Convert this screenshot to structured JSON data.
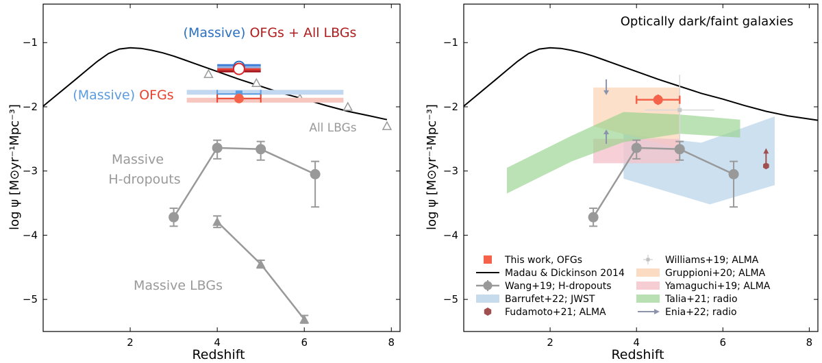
{
  "chart_data": [
    {
      "type": "scatter",
      "panel": "left",
      "xlabel": "Redshift",
      "ylabel": "log ψ [M⊙yr⁻¹Mpc⁻³]",
      "xlim": [
        0,
        8.2
      ],
      "ylim": [
        -5.5,
        -0.4
      ],
      "xticks": [
        2,
        4,
        6,
        8
      ],
      "xtick_labels": [
        "2",
        "4",
        "6",
        "8"
      ],
      "yticks": [
        -1,
        -2,
        -3,
        -4,
        -5
      ],
      "ytick_labels": [
        "−1",
        "−2",
        "−3",
        "−4",
        "−5"
      ],
      "madau_dickinson": [
        [
          0,
          -1.99
        ],
        [
          0.25,
          -1.85
        ],
        [
          0.5,
          -1.71
        ],
        [
          0.75,
          -1.57
        ],
        [
          1,
          -1.43
        ],
        [
          1.25,
          -1.29
        ],
        [
          1.5,
          -1.17
        ],
        [
          1.75,
          -1.1
        ],
        [
          2,
          -1.08
        ],
        [
          2.25,
          -1.09
        ],
        [
          2.5,
          -1.12
        ],
        [
          2.75,
          -1.16
        ],
        [
          3,
          -1.21
        ],
        [
          3.25,
          -1.27
        ],
        [
          3.5,
          -1.33
        ],
        [
          3.75,
          -1.39
        ],
        [
          4,
          -1.45
        ],
        [
          4.5,
          -1.57
        ],
        [
          5,
          -1.68
        ],
        [
          5.5,
          -1.79
        ],
        [
          6,
          -1.88
        ],
        [
          6.5,
          -1.98
        ],
        [
          7,
          -2.07
        ],
        [
          7.5,
          -2.14
        ],
        [
          7.9,
          -2.2
        ]
      ],
      "hdropouts": {
        "x": [
          3.0,
          4.0,
          5.0,
          6.25
        ],
        "y": [
          -3.72,
          -2.64,
          -2.66,
          -3.05
        ],
        "err_low": [
          0.14,
          0.17,
          0.17,
          0.51
        ],
        "err_high": [
          0.14,
          0.12,
          0.12,
          0.2
        ]
      },
      "massive_lbgs": {
        "x": [
          4.0,
          5.0,
          6.0
        ],
        "y": [
          -3.79,
          -4.45,
          -5.31
        ],
        "err": [
          0.09,
          0.06,
          0.06
        ]
      },
      "all_lbgs": {
        "x": [
          3.8,
          4.9,
          5.9,
          7.0,
          7.9
        ],
        "y": [
          -1.49,
          -1.63,
          -1.87,
          -2.0,
          -2.3
        ]
      },
      "ofg_all_lbg_point": {
        "x": 4.5,
        "y": -1.41,
        "xerr": 0.5
      },
      "ofg_point": {
        "x": 4.5,
        "y": -1.87,
        "xerr": 0.5,
        "yerr": 0.07
      },
      "massive_ofg_point": {
        "x": 4.5,
        "y": -1.8,
        "xerr": 0.5
      },
      "labels": {
        "title_massive": "(Massive)",
        "title_rest": " OFGs + All LBGs",
        "ofg_massive": "(Massive)",
        "ofg_rest": " OFGs",
        "all_lbgs": "All LBGs",
        "hdrop_line1": "Massive",
        "hdrop_line2": "H-dropouts",
        "massive_lbgs": "Massive LBGs"
      }
    },
    {
      "type": "scatter",
      "panel": "right",
      "title": "Optically dark/faint galaxies",
      "xlabel": "Redshift",
      "ylabel": "log ψ [M⊙yr⁻¹Mpc⁻³]",
      "xlim": [
        0,
        8.2
      ],
      "ylim": [
        -5.5,
        -0.4
      ],
      "xticks": [
        2,
        4,
        6,
        8
      ],
      "xtick_labels": [
        "2",
        "4",
        "6",
        "8"
      ],
      "yticks": [
        -1,
        -2,
        -3,
        -4,
        -5
      ],
      "ytick_labels": [
        "−1",
        "−2",
        "−3",
        "−4",
        "−5"
      ],
      "this_work": {
        "x": 4.5,
        "y": -1.89,
        "xerr": 0.5,
        "yerr": 0.08
      },
      "williams": {
        "x": 5.0,
        "y": -2.05,
        "xlow": 4.2,
        "xhigh": 5.8,
        "ylow": -2.6,
        "yhigh": -1.5
      },
      "fudamoto": {
        "x": 7.0,
        "y": -2.92
      },
      "enia_arrows": [
        {
          "x": 3.3,
          "y": -1.7,
          "dir": "down"
        },
        {
          "x": 3.3,
          "y": -2.47,
          "dir": "up"
        }
      ],
      "barrufet_band": [
        [
          3.7,
          -2.42
        ],
        [
          5.5,
          -2.56
        ],
        [
          7.2,
          -2.15
        ],
        [
          7.2,
          -3.22
        ],
        [
          5.7,
          -3.52
        ],
        [
          3.7,
          -3.12
        ]
      ],
      "gruppioni_band": [
        [
          3.0,
          -1.7
        ],
        [
          5.0,
          -1.7
        ],
        [
          5.0,
          -2.65
        ],
        [
          3.0,
          -2.3
        ]
      ],
      "yamaguchi_band": [
        [
          3.0,
          -2.5
        ],
        [
          5.0,
          -2.5
        ],
        [
          5.0,
          -2.88
        ],
        [
          3.0,
          -2.88
        ]
      ],
      "talia_band": [
        [
          1.0,
          -2.95
        ],
        [
          2.5,
          -2.45
        ],
        [
          3.7,
          -2.08
        ],
        [
          5.0,
          -2.12
        ],
        [
          6.4,
          -2.2
        ],
        [
          6.4,
          -2.48
        ],
        [
          5.0,
          -2.42
        ],
        [
          3.7,
          -2.55
        ],
        [
          2.5,
          -2.85
        ],
        [
          1.0,
          -3.35
        ]
      ],
      "madau_dickinson": [
        [
          0,
          -1.99
        ],
        [
          0.25,
          -1.85
        ],
        [
          0.5,
          -1.71
        ],
        [
          0.75,
          -1.57
        ],
        [
          1,
          -1.43
        ],
        [
          1.25,
          -1.29
        ],
        [
          1.5,
          -1.17
        ],
        [
          1.75,
          -1.1
        ],
        [
          2,
          -1.08
        ],
        [
          2.25,
          -1.09
        ],
        [
          2.5,
          -1.12
        ],
        [
          2.75,
          -1.16
        ],
        [
          3,
          -1.21
        ],
        [
          3.25,
          -1.27
        ],
        [
          3.5,
          -1.33
        ],
        [
          3.75,
          -1.39
        ],
        [
          4,
          -1.45
        ],
        [
          4.5,
          -1.57
        ],
        [
          5,
          -1.68
        ],
        [
          5.5,
          -1.79
        ],
        [
          6,
          -1.88
        ],
        [
          6.5,
          -1.98
        ],
        [
          7,
          -2.07
        ],
        [
          7.5,
          -2.14
        ],
        [
          8.2,
          -2.21
        ]
      ],
      "hdropouts": {
        "x": [
          3.0,
          4.0,
          5.0,
          6.25
        ],
        "y": [
          -3.72,
          -2.64,
          -2.66,
          -3.05
        ],
        "err_low": [
          0.14,
          0.17,
          0.17,
          0.51
        ],
        "err_high": [
          0.14,
          0.12,
          0.12,
          0.2
        ]
      },
      "legend": [
        {
          "label": "This work, OFGs",
          "kind": "square",
          "color": "#f4624a"
        },
        {
          "label": "Madau & Dickinson 2014",
          "kind": "line",
          "color": "#000000"
        },
        {
          "label": "Wang+19; H-dropouts",
          "kind": "marker-line",
          "color": "#999999"
        },
        {
          "label": "Barrufet+22; JWST",
          "kind": "patch",
          "color": "#c6dced"
        },
        {
          "label": "Fudamoto+21; ALMA",
          "kind": "hex",
          "color": "#a0514f"
        },
        {
          "label": "Williams+19; ALMA",
          "kind": "cross",
          "color": "#bfbfbf"
        },
        {
          "label": "Gruppioni+20; ALMA",
          "kind": "patch",
          "color": "#fbdcc3"
        },
        {
          "label": "Yamaguchi+19; ALMA",
          "kind": "patch",
          "color": "#f5cdd3"
        },
        {
          "label": "Talia+21; radio",
          "kind": "patch",
          "color": "#b9e0b2"
        },
        {
          "label": "Enia+22; radio",
          "kind": "arrow",
          "color": "#8c93aa"
        }
      ]
    }
  ],
  "colors": {
    "red": "#e8412c",
    "darkred": "#b01c1c",
    "blue": "#2a6fc0",
    "lightblue": "#5b9be0",
    "gray": "#999999",
    "ofg_point": "#f4624a"
  }
}
